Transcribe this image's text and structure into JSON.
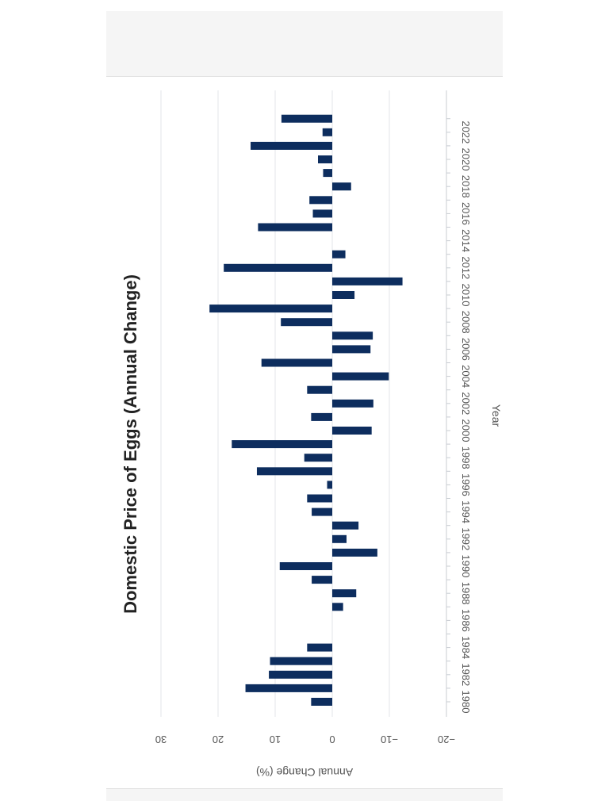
{
  "chart_data": {
    "type": "bar",
    "orientation": "rotated-90-clockwise",
    "title": "Domestic Price of Eggs (Annual Change)",
    "xlabel": "Year",
    "ylabel": "Annual Change (%)",
    "ylim": [
      -20,
      30
    ],
    "yticks": [
      -20,
      -10,
      0,
      10,
      20,
      30
    ],
    "grid": true,
    "bar_color": "#0d2d5e",
    "x_tick_labels": [
      "1980",
      "1982",
      "1984",
      "1986",
      "1988",
      "1990",
      "1992",
      "1994",
      "1996",
      "1998",
      "2000",
      "2002",
      "2004",
      "2006",
      "2008",
      "2010",
      "2012",
      "2014",
      "2016",
      "2018",
      "2020",
      "2022"
    ],
    "categories": [
      1980,
      1981,
      1982,
      1983,
      1984,
      1985,
      1986,
      1987,
      1988,
      1989,
      1990,
      1991,
      1992,
      1993,
      1994,
      1995,
      1996,
      1997,
      1998,
      1999,
      2000,
      2001,
      2002,
      2003,
      2004,
      2005,
      2006,
      2007,
      2008,
      2009,
      2010,
      2011,
      2012,
      2013,
      2014,
      2015,
      2016,
      2017,
      2018,
      2019,
      2020,
      2021,
      2022,
      2023
    ],
    "values": [
      3.7,
      15.2,
      11.1,
      10.9,
      4.4,
      0,
      0,
      -1.9,
      -4.2,
      3.6,
      9.2,
      -7.9,
      -2.5,
      -4.6,
      3.6,
      4.4,
      0.9,
      13.2,
      4.9,
      17.6,
      -6.9,
      3.7,
      -7.2,
      4.4,
      -9.9,
      12.4,
      -6.7,
      -7.1,
      9.0,
      21.5,
      -3.9,
      -12.3,
      19.0,
      -2.3,
      0,
      13.0,
      3.4,
      4.0,
      -3.3,
      1.6,
      2.5,
      14.3,
      1.7,
      8.9
    ]
  }
}
